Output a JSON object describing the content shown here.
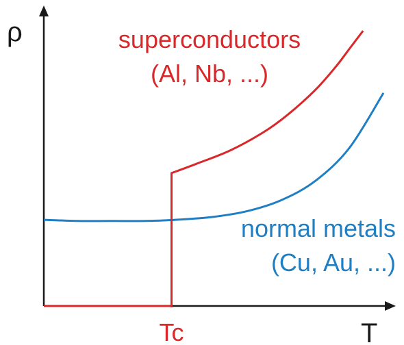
{
  "chart_data": {
    "type": "line",
    "title": "",
    "xlabel": "T",
    "ylabel": "ρ",
    "x_ticks": [
      "Tc"
    ],
    "grid": false,
    "colors": {
      "axis": "#1a1a1a",
      "superconductor": "#d8282a",
      "normal": "#1f7fc2"
    },
    "series": [
      {
        "name": "superconductors",
        "name2": "(Al, Nb, ...)",
        "color": "#d8282a",
        "x": [
          0,
          0.376,
          0.376,
          0.376,
          0.45,
          0.55,
          0.65,
          0.72,
          0.8,
          0.86,
          0.9,
          0.94
        ],
        "y": [
          0,
          0,
          0,
          0.483,
          0.517,
          0.566,
          0.634,
          0.697,
          0.786,
          0.87,
          0.935,
          1.0
        ]
      },
      {
        "name": "normal metals",
        "name2": "(Cu, Au, ...)",
        "color": "#1f7fc2",
        "x": [
          0,
          0.1,
          0.2,
          0.3,
          0.4,
          0.5,
          0.6,
          0.7,
          0.8,
          0.9,
          1.0
        ],
        "y": [
          0.313,
          0.309,
          0.309,
          0.309,
          0.314,
          0.324,
          0.345,
          0.385,
          0.455,
          0.575,
          0.774
        ]
      }
    ]
  }
}
